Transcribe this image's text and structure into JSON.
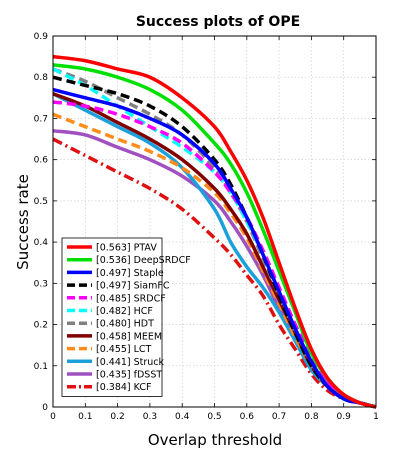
{
  "chart_data": {
    "type": "line",
    "title": "Success plots of OPE",
    "xlabel": "Overlap threshold",
    "ylabel": "Success rate",
    "xlim": [
      0,
      1
    ],
    "ylim": [
      0,
      0.9
    ],
    "xticks": [
      0,
      0.1,
      0.2,
      0.3,
      0.4,
      0.5,
      0.6,
      0.7,
      0.8,
      0.9,
      1
    ],
    "xtick_labels": [
      "0",
      "0.1",
      "0.2",
      "0.3",
      "0.4",
      "0.5",
      "0.6",
      "0.7",
      "0.8",
      "0.9",
      "1"
    ],
    "yticks": [
      0,
      0.1,
      0.2,
      0.3,
      0.4,
      0.5,
      0.6,
      0.7,
      0.8,
      0.9
    ],
    "ytick_labels": [
      "0",
      "0.1",
      "0.2",
      "0.3",
      "0.4",
      "0.5",
      "0.6",
      "0.7",
      "0.8",
      "0.9"
    ],
    "grid": true,
    "legend_position": "bottom-left",
    "series": [
      {
        "name": "[0.563] PTAV",
        "color": "#ff0000",
        "dash": "solid",
        "x": [
          0,
          0.1,
          0.2,
          0.3,
          0.4,
          0.5,
          0.55,
          0.6,
          0.65,
          0.7,
          0.75,
          0.8,
          0.85,
          0.9,
          0.95,
          1
        ],
        "y": [
          0.85,
          0.84,
          0.82,
          0.8,
          0.75,
          0.68,
          0.62,
          0.55,
          0.46,
          0.35,
          0.24,
          0.14,
          0.07,
          0.03,
          0.01,
          0
        ]
      },
      {
        "name": "[0.536] DeepSRDCF",
        "color": "#00e000",
        "dash": "solid",
        "x": [
          0,
          0.1,
          0.2,
          0.3,
          0.4,
          0.5,
          0.55,
          0.6,
          0.65,
          0.7,
          0.75,
          0.8,
          0.85,
          0.9,
          0.95,
          1
        ],
        "y": [
          0.83,
          0.82,
          0.8,
          0.77,
          0.72,
          0.64,
          0.59,
          0.52,
          0.43,
          0.33,
          0.23,
          0.13,
          0.07,
          0.03,
          0.01,
          0
        ]
      },
      {
        "name": "[0.497] Staple",
        "color": "#0000ff",
        "dash": "solid",
        "x": [
          0,
          0.1,
          0.2,
          0.3,
          0.4,
          0.5,
          0.55,
          0.6,
          0.65,
          0.7,
          0.75,
          0.8,
          0.85,
          0.9,
          0.95,
          1
        ],
        "y": [
          0.77,
          0.75,
          0.73,
          0.7,
          0.66,
          0.59,
          0.53,
          0.46,
          0.37,
          0.28,
          0.19,
          0.11,
          0.05,
          0.02,
          0.01,
          0
        ]
      },
      {
        "name": "[0.497] SiamFC",
        "color": "#000000",
        "dash": "dashed",
        "x": [
          0,
          0.1,
          0.2,
          0.3,
          0.4,
          0.5,
          0.55,
          0.6,
          0.65,
          0.7,
          0.75,
          0.8,
          0.85,
          0.9,
          0.95,
          1
        ],
        "y": [
          0.8,
          0.78,
          0.76,
          0.73,
          0.68,
          0.6,
          0.54,
          0.46,
          0.37,
          0.27,
          0.18,
          0.1,
          0.05,
          0.02,
          0.01,
          0
        ]
      },
      {
        "name": "[0.485] SRDCF",
        "color": "#ff00ff",
        "dash": "dashed",
        "x": [
          0,
          0.1,
          0.2,
          0.3,
          0.4,
          0.5,
          0.55,
          0.6,
          0.65,
          0.7,
          0.75,
          0.8,
          0.85,
          0.9,
          0.95,
          1
        ],
        "y": [
          0.74,
          0.73,
          0.71,
          0.68,
          0.64,
          0.57,
          0.52,
          0.46,
          0.38,
          0.29,
          0.2,
          0.12,
          0.06,
          0.02,
          0.01,
          0
        ]
      },
      {
        "name": "[0.482] HCF",
        "color": "#00ffff",
        "dash": "dashed",
        "x": [
          0,
          0.1,
          0.2,
          0.3,
          0.4,
          0.5,
          0.55,
          0.6,
          0.65,
          0.7,
          0.75,
          0.8,
          0.85,
          0.9,
          0.95,
          1
        ],
        "y": [
          0.82,
          0.78,
          0.73,
          0.68,
          0.63,
          0.57,
          0.52,
          0.45,
          0.37,
          0.28,
          0.19,
          0.11,
          0.05,
          0.02,
          0.01,
          0
        ]
      },
      {
        "name": "[0.480] HDT",
        "color": "#808080",
        "dash": "dashed",
        "x": [
          0,
          0.1,
          0.2,
          0.3,
          0.4,
          0.5,
          0.55,
          0.6,
          0.65,
          0.7,
          0.75,
          0.8,
          0.85,
          0.9,
          0.95,
          1
        ],
        "y": [
          0.82,
          0.79,
          0.75,
          0.71,
          0.66,
          0.58,
          0.52,
          0.45,
          0.36,
          0.27,
          0.18,
          0.1,
          0.05,
          0.02,
          0.01,
          0
        ]
      },
      {
        "name": "[0.458] MEEM",
        "color": "#800000",
        "dash": "solid",
        "x": [
          0,
          0.1,
          0.2,
          0.3,
          0.4,
          0.5,
          0.55,
          0.6,
          0.65,
          0.7,
          0.75,
          0.8,
          0.85,
          0.9,
          0.95,
          1
        ],
        "y": [
          0.76,
          0.73,
          0.69,
          0.65,
          0.6,
          0.53,
          0.48,
          0.42,
          0.34,
          0.26,
          0.18,
          0.1,
          0.05,
          0.02,
          0.01,
          0
        ]
      },
      {
        "name": "[0.455] LCT",
        "color": "#ff8c1a",
        "dash": "dashed",
        "x": [
          0,
          0.1,
          0.2,
          0.3,
          0.4,
          0.5,
          0.55,
          0.6,
          0.65,
          0.7,
          0.75,
          0.8,
          0.85,
          0.9,
          0.95,
          1
        ],
        "y": [
          0.71,
          0.68,
          0.65,
          0.62,
          0.58,
          0.52,
          0.47,
          0.41,
          0.33,
          0.25,
          0.17,
          0.1,
          0.05,
          0.02,
          0.01,
          0
        ]
      },
      {
        "name": "[0.441] Struck",
        "color": "#1ca0dc",
        "dash": "solid",
        "x": [
          0,
          0.1,
          0.2,
          0.3,
          0.4,
          0.5,
          0.55,
          0.6,
          0.65,
          0.7,
          0.75,
          0.8,
          0.85,
          0.9,
          0.95,
          1
        ],
        "y": [
          0.76,
          0.72,
          0.68,
          0.64,
          0.58,
          0.48,
          0.4,
          0.34,
          0.29,
          0.23,
          0.16,
          0.09,
          0.05,
          0.02,
          0.01,
          0
        ]
      },
      {
        "name": "[0.435] fDSST",
        "color": "#a050c0",
        "dash": "solid",
        "x": [
          0,
          0.1,
          0.2,
          0.3,
          0.4,
          0.5,
          0.55,
          0.6,
          0.65,
          0.7,
          0.75,
          0.8,
          0.85,
          0.9,
          0.95,
          1
        ],
        "y": [
          0.67,
          0.66,
          0.63,
          0.6,
          0.56,
          0.5,
          0.45,
          0.39,
          0.32,
          0.24,
          0.17,
          0.1,
          0.06,
          0.03,
          0.01,
          0
        ]
      },
      {
        "name": "[0.384] KCF",
        "color": "#e01010",
        "dash": "dashdot",
        "x": [
          0,
          0.1,
          0.2,
          0.3,
          0.4,
          0.5,
          0.55,
          0.6,
          0.65,
          0.7,
          0.75,
          0.8,
          0.85,
          0.9,
          0.95,
          1
        ],
        "y": [
          0.65,
          0.61,
          0.57,
          0.53,
          0.48,
          0.41,
          0.37,
          0.32,
          0.27,
          0.2,
          0.14,
          0.08,
          0.04,
          0.02,
          0.01,
          0
        ]
      }
    ]
  }
}
